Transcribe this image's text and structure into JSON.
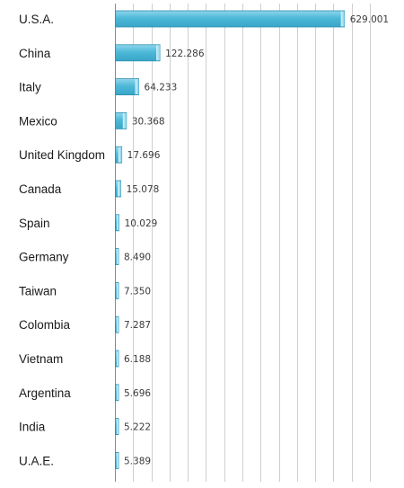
{
  "chart_data": {
    "type": "bar",
    "orientation": "horizontal",
    "categories": [
      "U.S.A.",
      "China",
      "Italy",
      "Mexico",
      "United Kingdom",
      "Canada",
      "Spain",
      "Germany",
      "Taiwan",
      "Colombia",
      "Vietnam",
      "Argentina",
      "India",
      "U.A.E."
    ],
    "values": [
      629001,
      122286,
      64233,
      30368,
      17696,
      15078,
      10029,
      8490,
      7350,
      7287,
      6188,
      5696,
      5222,
      5389
    ],
    "value_labels": [
      "629.001",
      "122.286",
      "64.233",
      "30.368",
      "17.696",
      "15.078",
      "10.029",
      "8.490",
      "7.350",
      "7.287",
      "6.188",
      "5.696",
      "5.222",
      "5.389"
    ],
    "xlim": [
      0,
      700000
    ],
    "grid": true,
    "legend": "none",
    "title": "",
    "xlabel": "",
    "ylabel": "",
    "colors": {
      "bar_fill": "#4db8d8",
      "bar_highlight": "#a9e4f4",
      "bar_stroke": "#2a8fb0",
      "grid": "#cfcfcf"
    }
  }
}
